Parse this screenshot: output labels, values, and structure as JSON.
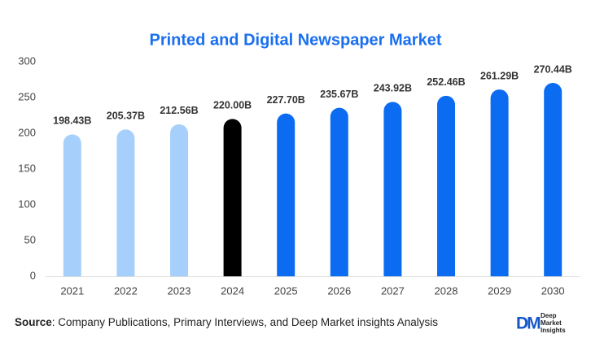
{
  "chart_data": {
    "type": "bar",
    "title": "Printed and Digital Newspaper Market",
    "categories": [
      "2021",
      "2022",
      "2023",
      "2024",
      "2025",
      "2026",
      "2027",
      "2028",
      "2029",
      "2030"
    ],
    "values": [
      198.43,
      205.37,
      212.56,
      220.0,
      227.7,
      235.67,
      243.92,
      252.46,
      261.29,
      270.44
    ],
    "value_labels": [
      "198.43B",
      "205.37B",
      "212.56B",
      "220.00B",
      "227.70B",
      "235.67B",
      "243.92B",
      "252.46B",
      "261.29B",
      "270.44B"
    ],
    "colors": [
      "#a6d0fb",
      "#a6d0fb",
      "#a6d0fb",
      "#000000",
      "#0b6cf2",
      "#0b6cf2",
      "#0b6cf2",
      "#0b6cf2",
      "#0b6cf2",
      "#0b6cf2"
    ],
    "ylim": [
      0,
      300
    ],
    "yticks": [
      0,
      50,
      100,
      150,
      200,
      250,
      300
    ],
    "grid": false
  },
  "source": {
    "label": "Source",
    "text": ": Company Publications, Primary Interviews, and Deep Market insights Analysis"
  },
  "logo": {
    "mark": "DM",
    "lines": [
      "Deep",
      "Market",
      "Insights"
    ]
  }
}
